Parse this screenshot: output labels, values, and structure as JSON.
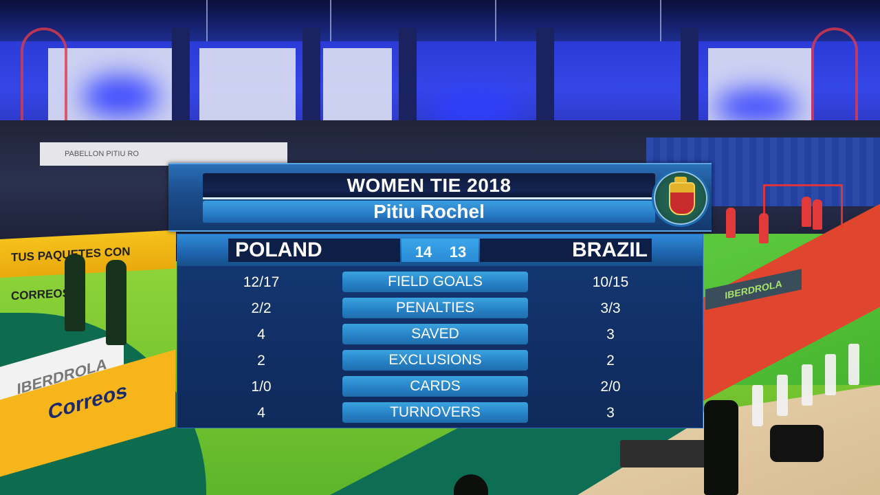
{
  "arena": {
    "left_banner_text": "PABELLON PITIU RO",
    "ad_board_text": "TUS PAQUETES CON CORREOS",
    "floor_mat_left_top": "IBERDROLA",
    "floor_mat_left_bottom": "Correos",
    "floor_mat_right": "IBERDROLA"
  },
  "scoreboard": {
    "title": "WOMEN TIE 2018",
    "venue": "Pitiu Rochel",
    "home_team": "POLAND",
    "away_team": "BRAZIL",
    "home_score": "14",
    "away_score": "13",
    "stats": [
      {
        "label": "FIELD GOALS",
        "home": "12/17",
        "away": "10/15"
      },
      {
        "label": "PENALTIES",
        "home": "2/2",
        "away": "3/3"
      },
      {
        "label": "SAVED",
        "home": "4",
        "away": "3"
      },
      {
        "label": "EXCLUSIONS",
        "home": "2",
        "away": "2"
      },
      {
        "label": "CARDS",
        "home": "1/0",
        "away": "2/0"
      },
      {
        "label": "TURNOVERS",
        "home": "4",
        "away": "3"
      }
    ]
  },
  "colors": {
    "panel_dark": "#0e1f47",
    "panel_blue": "#1c4f8e",
    "label_blue": "#2680c4",
    "text": "#ffffff"
  }
}
